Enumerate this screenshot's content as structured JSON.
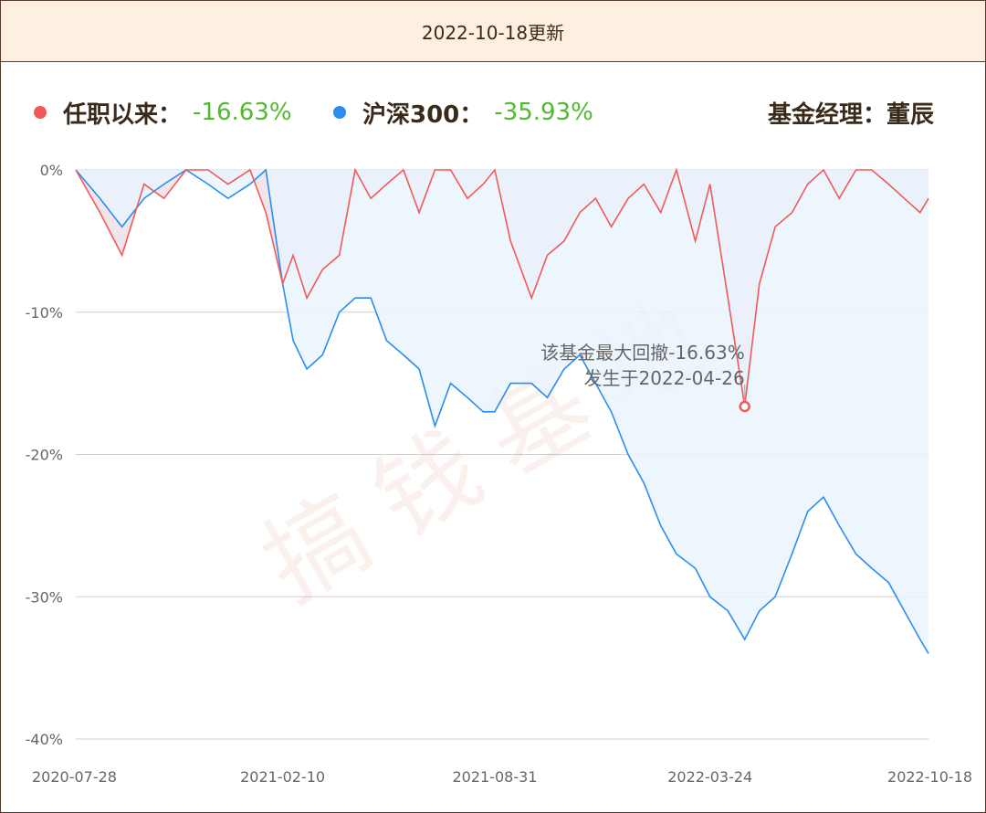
{
  "header": {
    "title": "2022-10-18更新"
  },
  "legend": {
    "fund_label": "任职以来：",
    "fund_value": "-16.63%",
    "index_label": "沪深300：",
    "index_value": "-35.93%",
    "manager": "基金经理：董辰"
  },
  "colors": {
    "fund": "#ef5a5a",
    "index": "#2a8ef0",
    "positive_text": "#52b830",
    "fund_area": "#efe2ea",
    "index_area": "#eaf3fd"
  },
  "watermark": "搞钱基地",
  "annotation": {
    "line1": "该基金最大回撤-16.63%",
    "line2": "发生于2022-04-26"
  },
  "chart_data": {
    "type": "line",
    "title": "",
    "xlabel": "",
    "ylabel": "",
    "ylim": [
      -40,
      0
    ],
    "yticks": [
      "0%",
      "-10%",
      "-20%",
      "-30%",
      "-40%"
    ],
    "xticks": [
      "2020-07-28",
      "2021-02-10",
      "2021-08-31",
      "2022-03-24",
      "2022-10-18"
    ],
    "x": [
      "2020-07-28",
      "2020-08-20",
      "2020-09-10",
      "2020-10-01",
      "2020-10-20",
      "2020-11-10",
      "2020-12-01",
      "2020-12-20",
      "2021-01-10",
      "2021-01-25",
      "2021-02-10",
      "2021-02-20",
      "2021-03-05",
      "2021-03-20",
      "2021-04-05",
      "2021-04-20",
      "2021-05-05",
      "2021-05-20",
      "2021-06-05",
      "2021-06-20",
      "2021-07-05",
      "2021-07-20",
      "2021-08-05",
      "2021-08-20",
      "2021-08-31",
      "2021-09-15",
      "2021-10-05",
      "2021-10-20",
      "2021-11-05",
      "2021-11-20",
      "2021-12-05",
      "2021-12-20",
      "2022-01-05",
      "2022-01-20",
      "2022-02-05",
      "2022-02-20",
      "2022-03-10",
      "2022-03-24",
      "2022-04-10",
      "2022-04-26",
      "2022-05-10",
      "2022-05-25",
      "2022-06-10",
      "2022-06-25",
      "2022-07-10",
      "2022-07-25",
      "2022-08-10",
      "2022-08-25",
      "2022-09-10",
      "2022-09-25",
      "2022-10-10",
      "2022-10-18"
    ],
    "series": [
      {
        "name": "任职以来",
        "values": [
          0,
          -3,
          -6,
          -1,
          -2,
          0,
          0,
          -1,
          0,
          -3,
          -8,
          -6,
          -9,
          -7,
          -6,
          0,
          -2,
          -1,
          0,
          -3,
          0,
          0,
          -2,
          -1,
          0,
          -5,
          -9,
          -6,
          -5,
          -3,
          -2,
          -4,
          -2,
          -1,
          -3,
          0,
          -5,
          -1,
          -9,
          -16.6,
          -8,
          -4,
          -3,
          -1,
          0,
          -2,
          0,
          0,
          -1,
          -2,
          -3,
          -2
        ]
      },
      {
        "name": "沪深300",
        "values": [
          0,
          -2,
          -4,
          -2,
          -1,
          0,
          -1,
          -2,
          -1,
          0,
          -8,
          -12,
          -14,
          -13,
          -10,
          -9,
          -9,
          -12,
          -13,
          -14,
          -18,
          -15,
          -16,
          -17,
          -17,
          -15,
          -15,
          -16,
          -14,
          -13,
          -15,
          -17,
          -20,
          -22,
          -25,
          -27,
          -28,
          -30,
          -31,
          -33,
          -31,
          -30,
          -27,
          -24,
          -23,
          -25,
          -27,
          -28,
          -29,
          -31,
          -33,
          -34
        ]
      }
    ],
    "max_drawdown": {
      "date": "2022-04-26",
      "value": -16.63
    },
    "grid": true,
    "legend": "top-left"
  }
}
